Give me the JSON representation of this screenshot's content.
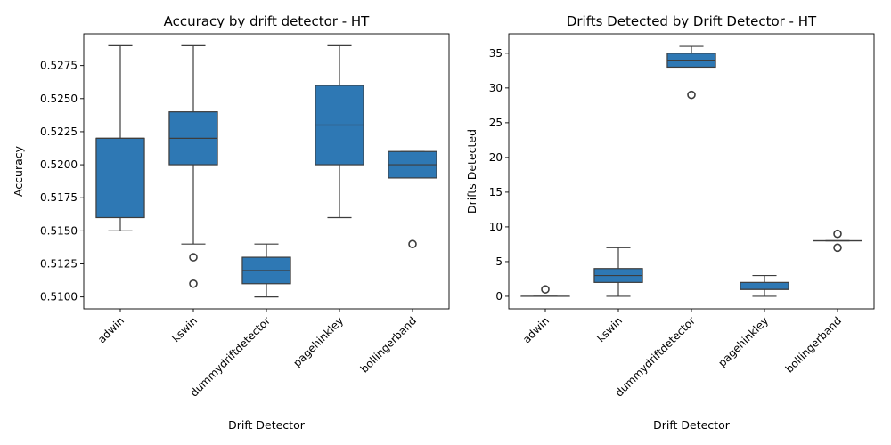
{
  "chart_data": [
    {
      "type": "box",
      "title": "Accuracy by drift detector - HT",
      "xlabel": "Drift Detector",
      "ylabel": "Accuracy",
      "ylim": [
        0.5091,
        0.5299
      ],
      "yticks": [
        0.51,
        0.5125,
        0.515,
        0.5175,
        0.52,
        0.5225,
        0.525,
        0.5275
      ],
      "ytick_labels": [
        "0.5100",
        "0.5125",
        "0.5150",
        "0.5175",
        "0.5200",
        "0.5225",
        "0.5250",
        "0.5275"
      ],
      "box_color": "#2e78b4",
      "categories": [
        "adwin",
        "kswin",
        "dummydriftdetector",
        "pagehinkley",
        "bollingerband"
      ],
      "boxes": [
        {
          "whisker_low": 0.515,
          "q1": 0.516,
          "median": 0.522,
          "q3": 0.522,
          "whisker_high": 0.529,
          "outliers": []
        },
        {
          "whisker_low": 0.514,
          "q1": 0.52,
          "median": 0.522,
          "q3": 0.524,
          "whisker_high": 0.529,
          "outliers": [
            0.513,
            0.511
          ]
        },
        {
          "whisker_low": 0.51,
          "q1": 0.511,
          "median": 0.512,
          "q3": 0.513,
          "whisker_high": 0.514,
          "outliers": []
        },
        {
          "whisker_low": 0.516,
          "q1": 0.52,
          "median": 0.523,
          "q3": 0.526,
          "whisker_high": 0.529,
          "outliers": []
        },
        {
          "whisker_low": 0.519,
          "q1": 0.519,
          "median": 0.52,
          "q3": 0.521,
          "whisker_high": 0.521,
          "outliers": [
            0.514
          ]
        }
      ]
    },
    {
      "type": "box",
      "title": "Drifts Detected by Drift Detector - HT",
      "xlabel": "Drift Detector",
      "ylabel": "Drifts Detected",
      "ylim": [
        -1.8,
        37.8
      ],
      "yticks": [
        0,
        5,
        10,
        15,
        20,
        25,
        30,
        35
      ],
      "ytick_labels": [
        "0",
        "5",
        "10",
        "15",
        "20",
        "25",
        "30",
        "35"
      ],
      "box_color": "#2e78b4",
      "categories": [
        "adwin",
        "kswin",
        "dummydriftdetector",
        "pagehinkley",
        "bollingerband"
      ],
      "boxes": [
        {
          "whisker_low": 0,
          "q1": 0,
          "median": 0,
          "q3": 0,
          "whisker_high": 0,
          "outliers": [
            1
          ]
        },
        {
          "whisker_low": 0,
          "q1": 2,
          "median": 3,
          "q3": 4,
          "whisker_high": 7,
          "outliers": []
        },
        {
          "whisker_low": 33,
          "q1": 33,
          "median": 34,
          "q3": 35,
          "whisker_high": 36,
          "outliers": [
            29
          ]
        },
        {
          "whisker_low": 0,
          "q1": 1,
          "median": 1,
          "q3": 2,
          "whisker_high": 3,
          "outliers": []
        },
        {
          "whisker_low": 8,
          "q1": 8,
          "median": 8,
          "q3": 8,
          "whisker_high": 8,
          "outliers": [
            9,
            7
          ]
        }
      ]
    }
  ]
}
